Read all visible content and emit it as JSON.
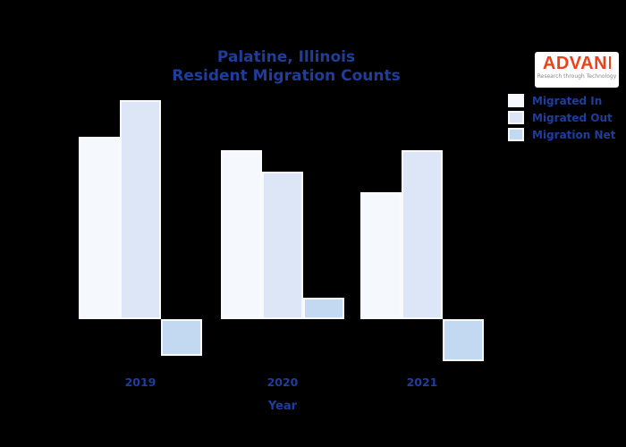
{
  "title": {
    "line1": "Palatine, Illinois",
    "line2": "Resident Migration Counts"
  },
  "logo": {
    "name": "ADVAN",
    "tagline": "Research through Technology"
  },
  "colors": {
    "background": "#000000",
    "title_text": "#1e3d9c",
    "logo_orange": "#e8431c",
    "bar_migrated_in": "#f5f8fd",
    "bar_migrated_out": "#dce6f7",
    "bar_migration_net": "#c3d9f2"
  },
  "chart_data": {
    "type": "bar",
    "title": "Palatine, Illinois Resident Migration Counts",
    "xlabel": "Year",
    "ylabel": "",
    "categories": [
      "2019",
      "2020",
      "2021"
    ],
    "series": [
      {
        "key": "in",
        "name": "Migrated In",
        "color": "#f5f8fd",
        "values": [
          204,
          189,
          142
        ]
      },
      {
        "key": "out",
        "name": "Migrated Out",
        "color": "#dce6f7",
        "values": [
          245,
          165,
          189
        ]
      },
      {
        "key": "net",
        "name": "Migration Net",
        "color": "#c3d9f2",
        "values": [
          -41,
          24,
          -47
        ]
      }
    ],
    "ylim": [
      -60,
      260
    ],
    "grid": false,
    "legend_position": "upper right",
    "y_axis_labels_visible": false
  }
}
